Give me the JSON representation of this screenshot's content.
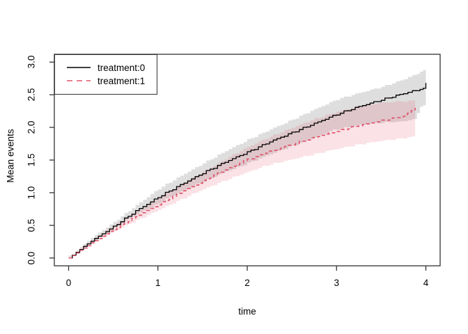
{
  "chart_data": {
    "type": "line",
    "title": "",
    "xlabel": "time",
    "ylabel": "Mean events",
    "xlim": [
      0,
      4
    ],
    "ylim": [
      0,
      3
    ],
    "x_ticks": [
      "0",
      "1",
      "2",
      "3",
      "4"
    ],
    "y_ticks": [
      "0.0",
      "0.5",
      "1.0",
      "1.5",
      "2.0",
      "2.5",
      "3.0"
    ],
    "grid": "off",
    "legend": {
      "position": "top-left",
      "entries": [
        {
          "label": "treatment:0",
          "color": "#000000",
          "style": "solid"
        },
        {
          "label": "treatment:1",
          "color": "#DF536B",
          "style": "dashed"
        }
      ]
    },
    "series": [
      {
        "name": "treatment:0",
        "color": "#000000",
        "style": "solid",
        "x": [
          0,
          0.25,
          0.5,
          0.75,
          1.0,
          1.25,
          1.5,
          1.75,
          2.0,
          2.25,
          2.5,
          2.75,
          3.0,
          3.25,
          3.5,
          3.75,
          3.9,
          3.97,
          4.0
        ],
        "y": [
          0,
          0.26,
          0.48,
          0.72,
          0.93,
          1.12,
          1.3,
          1.47,
          1.62,
          1.78,
          1.92,
          2.06,
          2.2,
          2.32,
          2.42,
          2.52,
          2.57,
          2.6,
          2.68
        ],
        "band": {
          "color": "#999999",
          "opacity": 0.32,
          "upper": [
            0.02,
            0.31,
            0.55,
            0.81,
            1.06,
            1.26,
            1.45,
            1.64,
            1.81,
            1.97,
            2.12,
            2.28,
            2.43,
            2.53,
            2.62,
            2.74,
            2.83,
            2.88,
            2.97
          ],
          "lower": [
            0,
            0.21,
            0.42,
            0.64,
            0.81,
            0.99,
            1.15,
            1.3,
            1.43,
            1.57,
            1.7,
            1.83,
            1.96,
            2.03,
            2.07,
            2.09,
            2.12,
            2.32,
            2.34
          ]
        }
      },
      {
        "name": "treatment:1",
        "color": "#DF536B",
        "style": "dashed",
        "x": [
          0,
          0.25,
          0.5,
          0.75,
          1.0,
          1.25,
          1.5,
          1.75,
          2.0,
          2.25,
          2.5,
          2.75,
          3.0,
          3.25,
          3.5,
          3.75,
          3.88
        ],
        "y": [
          0,
          0.23,
          0.44,
          0.63,
          0.82,
          1.0,
          1.18,
          1.35,
          1.51,
          1.63,
          1.74,
          1.85,
          1.94,
          2.03,
          2.1,
          2.17,
          2.3
        ],
        "band": {
          "color": "#DF536B",
          "opacity": 0.17,
          "upper": [
            0.02,
            0.27,
            0.5,
            0.71,
            0.93,
            1.13,
            1.32,
            1.52,
            1.7,
            1.86,
            2.0,
            2.13,
            2.24,
            2.33,
            2.38,
            2.4,
            2.41
          ],
          "lower": [
            0,
            0.19,
            0.38,
            0.55,
            0.71,
            0.87,
            1.03,
            1.17,
            1.3,
            1.42,
            1.5,
            1.58,
            1.66,
            1.73,
            1.79,
            1.83,
            1.86
          ]
        }
      }
    ]
  }
}
